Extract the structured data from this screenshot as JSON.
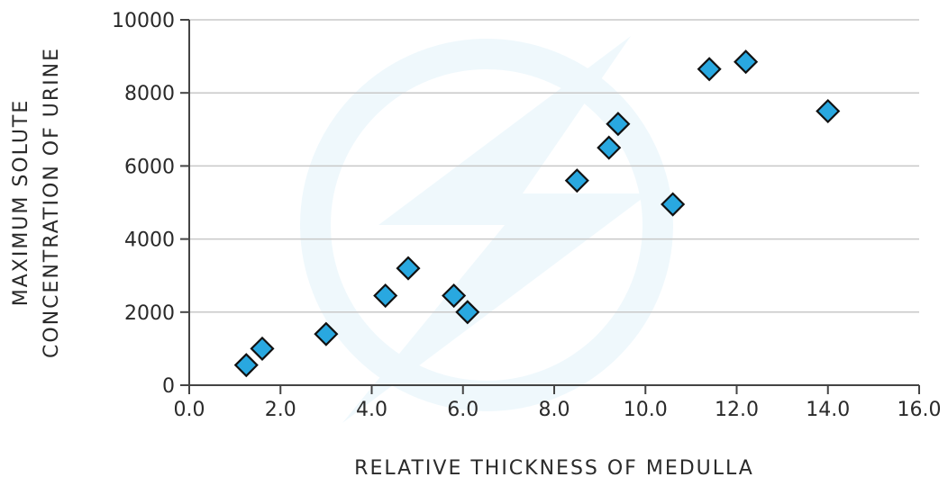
{
  "chart_data": {
    "type": "scatter",
    "title": "",
    "xlabel": "RELATIVE THICKNESS OF MEDULLA",
    "ylabel_lines": [
      "MAXIMUM SOLUTE",
      "CONCENTRATION OF URINE"
    ],
    "xlim": [
      0,
      16
    ],
    "ylim": [
      0,
      10000
    ],
    "x_ticks": [
      0,
      2,
      4,
      6,
      8,
      10,
      12,
      14,
      16
    ],
    "x_tick_labels": [
      "0.0",
      "2.0",
      "4.0",
      "6.0",
      "8.0",
      "10.0",
      "12.0",
      "14.0",
      "16.0"
    ],
    "y_ticks": [
      0,
      2000,
      4000,
      6000,
      8000,
      10000
    ],
    "y_tick_labels": [
      "0",
      "2000",
      "4000",
      "6000",
      "8000",
      "10000"
    ],
    "grid": "horizontal",
    "legend": "none",
    "marker": "diamond",
    "marker_color": "#29a8e0",
    "marker_edge_color": "#111111",
    "grid_color": "#c8c8c8",
    "axis_color": "#444444",
    "points": [
      {
        "x": 1.25,
        "y": 550
      },
      {
        "x": 1.6,
        "y": 1000
      },
      {
        "x": 3.0,
        "y": 1400
      },
      {
        "x": 4.3,
        "y": 2450
      },
      {
        "x": 4.8,
        "y": 3200
      },
      {
        "x": 5.8,
        "y": 2450
      },
      {
        "x": 6.1,
        "y": 2000
      },
      {
        "x": 8.5,
        "y": 5600
      },
      {
        "x": 9.2,
        "y": 6500
      },
      {
        "x": 9.4,
        "y": 7150
      },
      {
        "x": 10.6,
        "y": 4950
      },
      {
        "x": 11.4,
        "y": 8650
      },
      {
        "x": 12.2,
        "y": 8850
      },
      {
        "x": 14.0,
        "y": 7500
      }
    ]
  }
}
